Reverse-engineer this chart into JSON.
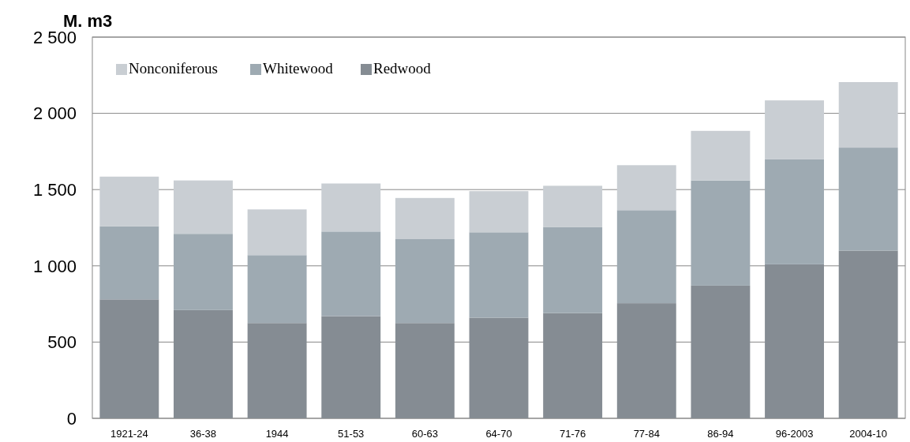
{
  "chart_data": {
    "type": "bar",
    "title": "M. m3",
    "stacked": true,
    "categories": [
      "1921-24",
      "36-38",
      "1944",
      "51-53",
      "60-63",
      "64-70",
      "71-76",
      "77-84",
      "86-94",
      "96-2003",
      "2004-10"
    ],
    "series": [
      {
        "name": "Redwood",
        "color": "#858c93",
        "values": [
          780,
          710,
          625,
          670,
          625,
          660,
          690,
          755,
          870,
          1010,
          1100
        ]
      },
      {
        "name": "Whitewood",
        "color": "#9eaab2",
        "values": [
          480,
          500,
          445,
          555,
          550,
          560,
          565,
          610,
          690,
          690,
          675
        ]
      },
      {
        "name": "Nonconiferous",
        "color": "#c9ced3",
        "values": [
          325,
          350,
          300,
          315,
          270,
          270,
          270,
          295,
          325,
          385,
          430
        ]
      }
    ],
    "ylim": [
      0,
      2500
    ],
    "yticks": [
      {
        "value": 0,
        "label": "0"
      },
      {
        "value": 500,
        "label": "500"
      },
      {
        "value": 1000,
        "label": "1 000"
      },
      {
        "value": 1500,
        "label": "1 500"
      },
      {
        "value": 2000,
        "label": "2 000"
      },
      {
        "value": 2500,
        "label": "2 500"
      }
    ],
    "grid": "y",
    "legend": "top left"
  }
}
